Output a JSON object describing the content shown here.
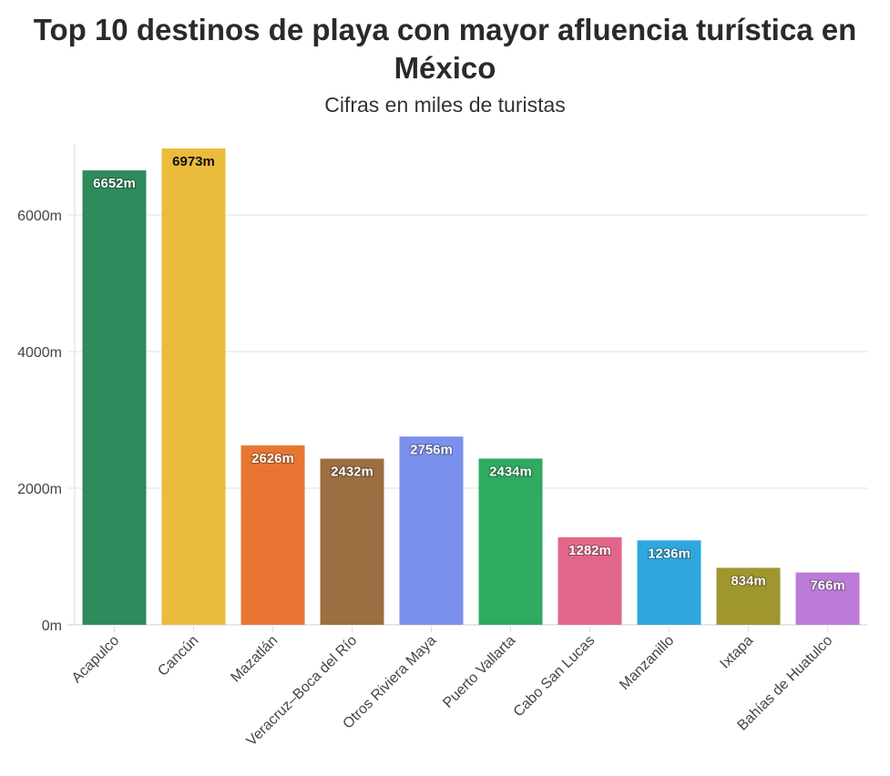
{
  "chart_data": {
    "type": "bar",
    "title": "Top 10 destinos de playa con mayor afluencia turística en México",
    "subtitle": "Cifras en miles de turistas",
    "xlabel": "",
    "ylabel": "",
    "categories": [
      "Acapulco",
      "Cancún",
      "Mazatlán",
      "Veracruz–Boca del Río",
      "Otros Riviera Maya",
      "Puerto Vallarta",
      "Cabo San Lucas",
      "Manzanillo",
      "Ixtapa",
      "Bahías de Huatulco"
    ],
    "values": [
      6652,
      6973,
      2626,
      2432,
      2756,
      2434,
      1282,
      1236,
      834,
      766
    ],
    "data_labels": [
      "6652m",
      "6973m",
      "2626m",
      "2432m",
      "2756m",
      "2434m",
      "1282m",
      "1236m",
      "834m",
      "766m"
    ],
    "colors": [
      "#2e8b5b",
      "#ebbb3b",
      "#e87532",
      "#9c6e41",
      "#7b90ec",
      "#2eaa61",
      "#e2668a",
      "#2fa7dd",
      "#a0962e",
      "#bc7bd6"
    ],
    "label_text_colors": [
      "#ffffff",
      "#111111",
      "#ffffff",
      "#ffffff",
      "#ffffff",
      "#ffffff",
      "#ffffff",
      "#ffffff",
      "#ffffff",
      "#ffffff"
    ],
    "yticks": [
      0,
      2000,
      4000,
      6000
    ],
    "ytick_labels": [
      "0m",
      "2000m",
      "4000m",
      "6000m"
    ],
    "ylim": [
      0,
      7000
    ],
    "grid": "horizontal",
    "legend": "none"
  }
}
